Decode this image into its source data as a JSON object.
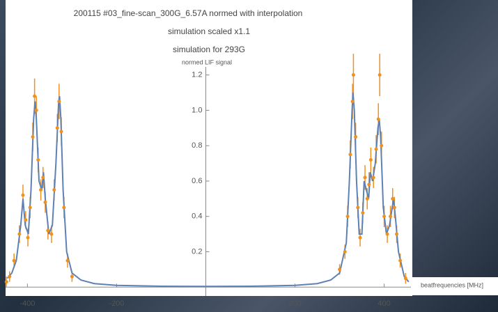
{
  "chart_data": {
    "type": "line",
    "titles": [
      "200115 #03_fine-scan_300G_6.57A normed with interpolation",
      "simulation scaled x1.1",
      "simulation for 293G"
    ],
    "y_label": "normed LIF signal",
    "x_label": "beatfrequencies [MHz]",
    "xlim": [
      -449,
      460
    ],
    "ylim": [
      -0.05,
      1.23
    ],
    "xticks": [
      -400,
      -200,
      200,
      400
    ],
    "yticks": [
      0.2,
      0.4,
      0.6,
      0.8,
      {
        "value": 1,
        "label": "1.0"
      },
      1.2
    ],
    "line": {
      "color": "#5e81b5",
      "x": [
        -445,
        -435,
        -425,
        -415,
        -410,
        -405,
        -398,
        -392,
        -386,
        -383,
        -380,
        -374,
        -368,
        -364,
        -360,
        -352,
        -344,
        -336,
        -330,
        -328,
        -325,
        -320,
        -312,
        -300,
        -280,
        -250,
        -200,
        -100,
        0,
        100,
        200,
        250,
        280,
        300,
        315,
        322,
        328,
        330,
        333,
        338,
        344,
        350,
        355,
        360,
        365,
        369,
        374,
        380,
        386,
        389,
        392,
        398,
        405,
        412,
        418,
        421,
        425,
        432,
        445,
        455
      ],
      "values": [
        0.05,
        0.08,
        0.15,
        0.35,
        0.5,
        0.35,
        0.3,
        0.55,
        0.95,
        1.05,
        0.95,
        0.6,
        0.55,
        0.65,
        0.5,
        0.3,
        0.35,
        0.7,
        1.05,
        1.08,
        0.95,
        0.55,
        0.2,
        0.08,
        0.04,
        0.02,
        0.01,
        0.005,
        0.004,
        0.005,
        0.01,
        0.02,
        0.04,
        0.08,
        0.25,
        0.6,
        1.0,
        1.1,
        1.0,
        0.6,
        0.3,
        0.3,
        0.6,
        0.55,
        0.5,
        0.65,
        0.6,
        0.7,
        0.9,
        0.95,
        0.85,
        0.45,
        0.3,
        0.35,
        0.45,
        0.5,
        0.4,
        0.2,
        0.06,
        0.03
      ]
    },
    "points": {
      "color": "#f0901e",
      "x": [
        -447,
        -440,
        -430,
        -418,
        -410,
        -404,
        -399,
        -394,
        -388,
        -384,
        -380,
        -376,
        -370,
        -365,
        -360,
        -354,
        -346,
        -340,
        -333,
        -329,
        -324,
        -318,
        -310,
        -300,
        300,
        312,
        318,
        324,
        329,
        331,
        336,
        341,
        346,
        352,
        357,
        362,
        366,
        370,
        376,
        382,
        387,
        390,
        394,
        400,
        407,
        414,
        419,
        423,
        428,
        436,
        448
      ],
      "values": [
        0.03,
        0.06,
        0.15,
        0.3,
        0.52,
        0.38,
        0.28,
        0.45,
        0.85,
        1.08,
        1.0,
        0.72,
        0.55,
        0.62,
        0.48,
        0.32,
        0.3,
        0.55,
        0.9,
        1.05,
        0.88,
        0.45,
        0.15,
        0.06,
        0.1,
        0.2,
        0.4,
        0.75,
        1.05,
        1.2,
        0.85,
        0.45,
        0.28,
        0.42,
        0.62,
        0.5,
        0.58,
        0.72,
        0.62,
        0.78,
        0.95,
        1.2,
        0.8,
        0.4,
        0.3,
        0.4,
        0.5,
        0.45,
        0.3,
        0.15,
        0.05
      ],
      "errors": [
        0.03,
        0.03,
        0.04,
        0.05,
        0.06,
        0.05,
        0.05,
        0.06,
        0.08,
        0.1,
        0.08,
        0.07,
        0.06,
        0.06,
        0.06,
        0.05,
        0.05,
        0.06,
        0.08,
        0.1,
        0.08,
        0.06,
        0.04,
        0.03,
        0.03,
        0.04,
        0.06,
        0.08,
        0.1,
        0.12,
        0.08,
        0.06,
        0.05,
        0.06,
        0.07,
        0.06,
        0.07,
        0.07,
        0.06,
        0.08,
        0.09,
        0.12,
        0.08,
        0.06,
        0.05,
        0.06,
        0.06,
        0.06,
        0.05,
        0.04,
        0.03
      ]
    }
  }
}
